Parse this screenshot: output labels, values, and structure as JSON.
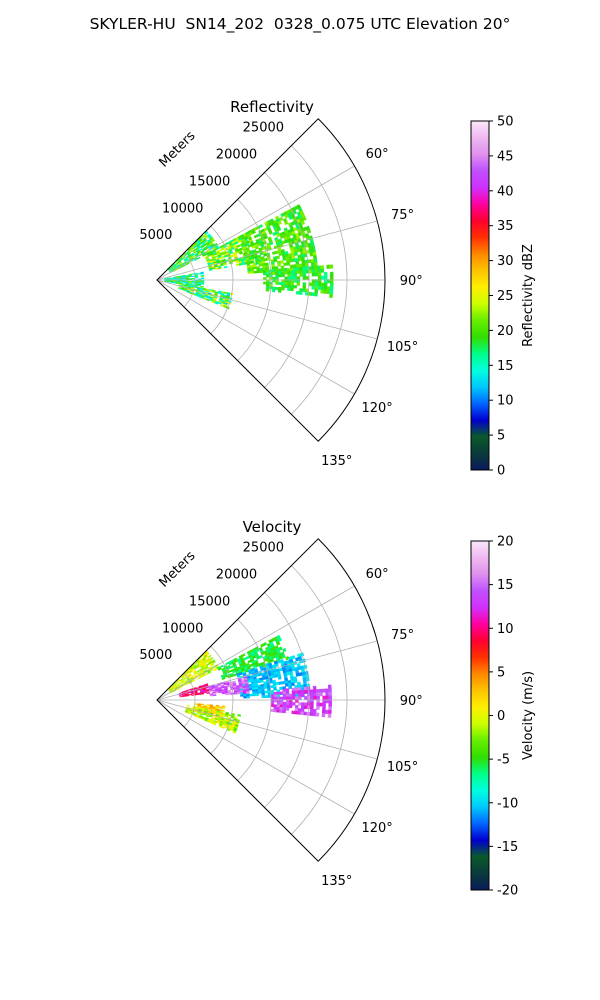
{
  "figure_title": "SKYLER-HU  SN14_202  0328_0.075 UTC Elevation 20°",
  "chart_data": [
    {
      "type": "heatmap",
      "projection": "polar-sector",
      "title": "Reflectivity",
      "range_label": "Meters",
      "range_ticks": [
        5000,
        10000,
        15000,
        20000,
        25000
      ],
      "range_tick_labels": [
        "5000",
        "10000",
        "15000",
        "20000",
        "25000"
      ],
      "rmax": 30000,
      "azimuth_ticks_deg": [
        60,
        75,
        90,
        105,
        120,
        135
      ],
      "azimuth_tick_labels": [
        "60°",
        "75°",
        "90°",
        "105°",
        "120°",
        "135°"
      ],
      "azimuth_range_deg": [
        45,
        135
      ],
      "grid": true,
      "colorbar": {
        "label": "Reflectivity dBZ",
        "vmin": 0,
        "vmax": 50,
        "ticks": [
          0,
          5,
          10,
          15,
          20,
          25,
          30,
          35,
          40,
          45,
          50
        ],
        "tick_labels": [
          "0",
          "5",
          "10",
          "15",
          "20",
          "25",
          "30",
          "35",
          "40",
          "45",
          "50"
        ],
        "stops": [
          "#0a1a5c",
          "#0a3a3a",
          "#0a5a2a",
          "#0000d0",
          "#0066ff",
          "#00c8ff",
          "#00ffdd",
          "#00ff88",
          "#33dd00",
          "#66ee00",
          "#ccff00",
          "#ffee00",
          "#ffc400",
          "#ff8800",
          "#ff3000",
          "#ff0030",
          "#ff00a0",
          "#d030ff",
          "#c050ff",
          "#e090ee",
          "#f0b8f0",
          "#fae8fa"
        ]
      },
      "echo_regions": [
        {
          "az": [
            45,
            62
          ],
          "r": [
            2000,
            9000
          ],
          "value_range": [
            13,
            24
          ]
        },
        {
          "az": [
            62,
            80
          ],
          "r": [
            7000,
            13000
          ],
          "value_range": [
            15,
            26
          ]
        },
        {
          "az": [
            62,
            85
          ],
          "r": [
            12000,
            21000
          ],
          "value_range": [
            17,
            23
          ]
        },
        {
          "az": [
            80,
            100
          ],
          "r": [
            1000,
            6000
          ],
          "value_range": [
            12,
            22
          ]
        },
        {
          "az": [
            100,
            112
          ],
          "r": [
            3000,
            10000
          ],
          "value_range": [
            12,
            26
          ]
        },
        {
          "az": [
            85,
            95
          ],
          "r": [
            14000,
            23000
          ],
          "value_range": [
            16,
            22
          ]
        }
      ]
    },
    {
      "type": "heatmap",
      "projection": "polar-sector",
      "title": "Velocity",
      "range_label": "Meters",
      "range_ticks": [
        5000,
        10000,
        15000,
        20000,
        25000
      ],
      "range_tick_labels": [
        "5000",
        "10000",
        "15000",
        "20000",
        "25000"
      ],
      "rmax": 30000,
      "azimuth_ticks_deg": [
        60,
        75,
        90,
        105,
        120,
        135
      ],
      "azimuth_tick_labels": [
        "60°",
        "75°",
        "90°",
        "105°",
        "120°",
        "135°"
      ],
      "azimuth_range_deg": [
        45,
        135
      ],
      "grid": true,
      "colorbar": {
        "label": "Velocity (m/s)",
        "vmin": -20,
        "vmax": 20,
        "ticks": [
          -20,
          -15,
          -10,
          -5,
          0,
          5,
          10,
          15,
          20
        ],
        "tick_labels": [
          "-20",
          "-15",
          "-10",
          "-5",
          "0",
          "5",
          "10",
          "15",
          "20"
        ],
        "stops": [
          "#0a1a5c",
          "#0a3a3a",
          "#0a5a2a",
          "#0000d0",
          "#0066ff",
          "#00c8ff",
          "#00ffdd",
          "#00ff88",
          "#33dd00",
          "#66ee00",
          "#ccff00",
          "#ffee00",
          "#ffc400",
          "#ff8800",
          "#ff3000",
          "#ff0030",
          "#ff00a0",
          "#d030ff",
          "#c050ff",
          "#e090ee",
          "#f0b8f0",
          "#fae8fa"
        ]
      },
      "echo_regions": [
        {
          "az": [
            45,
            62
          ],
          "r": [
            2000,
            9000
          ],
          "value_range": [
            -3,
            2
          ]
        },
        {
          "az": [
            62,
            72
          ],
          "r": [
            9000,
            18000
          ],
          "value_range": [
            -7,
            -4
          ]
        },
        {
          "az": [
            72,
            88
          ],
          "r": [
            11000,
            20000
          ],
          "value_range": [
            -12,
            -9
          ]
        },
        {
          "az": [
            72,
            82
          ],
          "r": [
            3000,
            7000
          ],
          "value_range": [
            8,
            12
          ]
        },
        {
          "az": [
            75,
            85
          ],
          "r": [
            7000,
            12000
          ],
          "value_range": [
            12,
            17
          ]
        },
        {
          "az": [
            85,
            95
          ],
          "r": [
            15000,
            23000
          ],
          "value_range": [
            11,
            16
          ]
        },
        {
          "az": [
            95,
            105
          ],
          "r": [
            5000,
            9000
          ],
          "value_range": [
            0,
            5
          ]
        },
        {
          "az": [
            100,
            113
          ],
          "r": [
            4000,
            11000
          ],
          "value_range": [
            -4,
            2
          ]
        }
      ]
    }
  ]
}
